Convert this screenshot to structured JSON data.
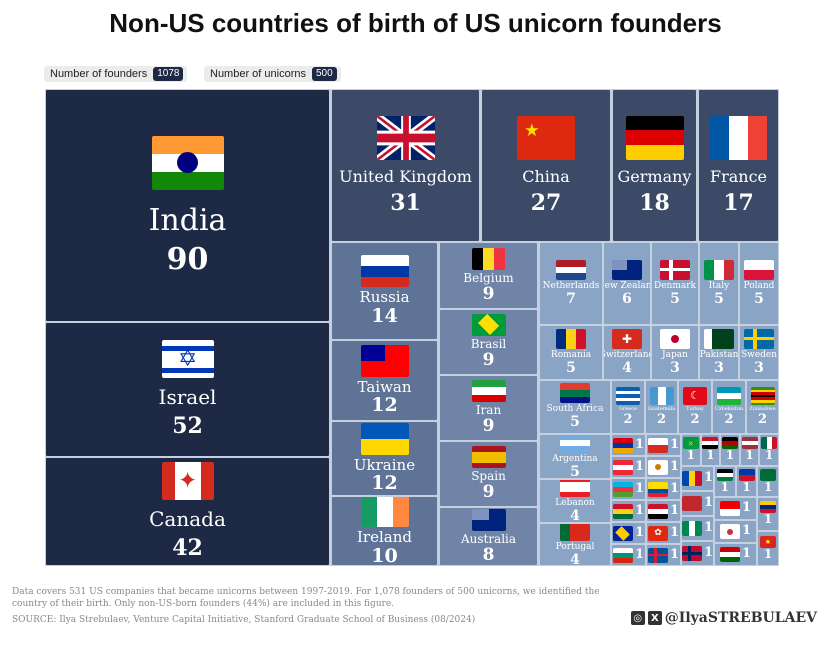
{
  "title": "Non-US countries of birth of US unicorn founders",
  "stats": {
    "founders_label": "Number of founders",
    "founders_value": "1078",
    "unicorns_label": "Number of unicorns",
    "unicorns_value": "500"
  },
  "colors": {
    "dark": "#1e2a45",
    "mid_dark": "#3c4a68",
    "mid": "#5f7397",
    "mid_light": "#6f84a6",
    "light": "#8aa4c5"
  },
  "chart_data": {
    "type": "treemap",
    "title": "Non-US countries of birth of US unicorn founders",
    "items": [
      {
        "name": "India",
        "value": 90,
        "flag": "india"
      },
      {
        "name": "Israel",
        "value": 52,
        "flag": "israel"
      },
      {
        "name": "Canada",
        "value": 42,
        "flag": "canada"
      },
      {
        "name": "United Kingdom",
        "value": 31,
        "flag": "uk"
      },
      {
        "name": "China",
        "value": 27,
        "flag": "china"
      },
      {
        "name": "Germany",
        "value": 18,
        "flag": "germany"
      },
      {
        "name": "France",
        "value": 17,
        "flag": "france"
      },
      {
        "name": "Russia",
        "value": 14,
        "flag": "russia"
      },
      {
        "name": "Taiwan",
        "value": 12,
        "flag": "taiwan"
      },
      {
        "name": "Ukraine",
        "value": 12,
        "flag": "ukraine"
      },
      {
        "name": "Ireland",
        "value": 10,
        "flag": "ireland"
      },
      {
        "name": "Belgium",
        "value": 9,
        "flag": "belgium"
      },
      {
        "name": "Brasil",
        "value": 9,
        "flag": "brasil"
      },
      {
        "name": "Iran",
        "value": 9,
        "flag": "iran"
      },
      {
        "name": "Spain",
        "value": 9,
        "flag": "spain"
      },
      {
        "name": "Australia",
        "value": 8,
        "flag": "australia"
      },
      {
        "name": "Netherlands",
        "value": 7,
        "flag": "netherlands"
      },
      {
        "name": "New Zealand",
        "value": 6,
        "flag": "nz"
      },
      {
        "name": "Denmark",
        "value": 5,
        "flag": "denmark"
      },
      {
        "name": "Italy",
        "value": 5,
        "flag": "italy"
      },
      {
        "name": "Poland",
        "value": 5,
        "flag": "poland"
      },
      {
        "name": "Romania",
        "value": 5,
        "flag": "romania"
      },
      {
        "name": "Switzerland",
        "value": 4,
        "flag": "switzerland"
      },
      {
        "name": "Japan",
        "value": 3,
        "flag": "japan"
      },
      {
        "name": "Pakistan",
        "value": 3,
        "flag": "pakistan"
      },
      {
        "name": "Sweden",
        "value": 3,
        "flag": "sweden"
      },
      {
        "name": "South Africa",
        "value": 5,
        "flag": "southafrica"
      },
      {
        "name": "Greece",
        "value": 2,
        "flag": "greece"
      },
      {
        "name": "Guatemala",
        "value": 2,
        "flag": "guatemala"
      },
      {
        "name": "Turkey",
        "value": 2,
        "flag": "turkey"
      },
      {
        "name": "Uzbekistan",
        "value": 2,
        "flag": "uzbekistan"
      },
      {
        "name": "Zimbabwe",
        "value": 2,
        "flag": "zimbabwe"
      },
      {
        "name": "Argentina",
        "value": 5,
        "flag": "argentina"
      },
      {
        "name": "Lebanon",
        "value": 4,
        "flag": "lebanon"
      },
      {
        "name": "Portugal",
        "value": 4,
        "flag": "portugal"
      },
      {
        "name": "",
        "value": 1,
        "flag": "armenia"
      },
      {
        "name": "",
        "value": 1,
        "flag": "austria"
      },
      {
        "name": "",
        "value": 1,
        "flag": "azerbaijan"
      },
      {
        "name": "",
        "value": 1,
        "flag": "ghana"
      },
      {
        "name": "",
        "value": 1,
        "flag": "bosnia"
      },
      {
        "name": "",
        "value": 1,
        "flag": "bulgaria"
      },
      {
        "name": "",
        "value": 1,
        "flag": "chile"
      },
      {
        "name": "",
        "value": 1,
        "flag": "cyprus"
      },
      {
        "name": "",
        "value": 1,
        "flag": "ecuador"
      },
      {
        "name": "",
        "value": 1,
        "flag": "egypt"
      },
      {
        "name": "",
        "value": 1,
        "flag": "hongkong"
      },
      {
        "name": "",
        "value": 1,
        "flag": "iceland"
      },
      {
        "name": "",
        "value": 1,
        "flag": "jamaica"
      },
      {
        "name": "",
        "value": 1,
        "flag": "iraq"
      },
      {
        "name": "",
        "value": 1,
        "flag": "kenya"
      },
      {
        "name": "",
        "value": 1,
        "flag": "latvia"
      },
      {
        "name": "",
        "value": 1,
        "flag": "mexico"
      },
      {
        "name": "",
        "value": 1,
        "flag": "moldova"
      },
      {
        "name": "",
        "value": 1,
        "flag": "morocco"
      },
      {
        "name": "",
        "value": 1,
        "flag": "nigeria"
      },
      {
        "name": "",
        "value": 1,
        "flag": "norway"
      },
      {
        "name": "",
        "value": 1,
        "flag": "palestine"
      },
      {
        "name": "",
        "value": 1,
        "flag": "philippines"
      },
      {
        "name": "",
        "value": 1,
        "flag": "saudiarabia"
      },
      {
        "name": "",
        "value": 1,
        "flag": "indonesia"
      },
      {
        "name": "",
        "value": 1,
        "flag": "southkorea"
      },
      {
        "name": "",
        "value": 1,
        "flag": "tajikistan"
      },
      {
        "name": "",
        "value": 1,
        "flag": "venezuela"
      },
      {
        "name": "",
        "value": 1,
        "flag": "vietnam"
      }
    ]
  },
  "footer": {
    "note": "Data covers 531 US companies that became unicorns between 1997-2019. For 1,078 founders of 500 unicorns, we identified the country of their birth. Only non-US-born founders (44%) are included in this figure.",
    "source": "SOURCE: Ilya Strebulaev, Venture Capital Initiative, Stanford Graduate School of Business (08/2024)",
    "handle": "@IlyaSTREBULAEV"
  }
}
